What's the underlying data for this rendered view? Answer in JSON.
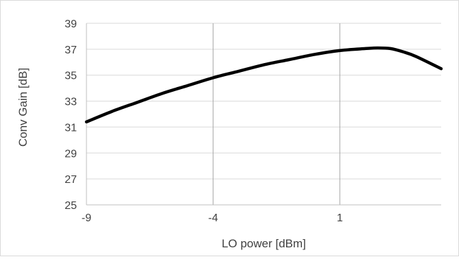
{
  "chart_data": {
    "type": "line",
    "title": "",
    "xlabel": "LO power [dBm]",
    "ylabel": "Conv Gain [dB]",
    "xlim": [
      -9,
      5
    ],
    "ylim": [
      25,
      39
    ],
    "x_ticks": [
      -9,
      -4,
      1
    ],
    "y_ticks": [
      25,
      27,
      29,
      31,
      33,
      35,
      37,
      39
    ],
    "grid": {
      "horizontal": true,
      "vertical": true
    },
    "legend": "none",
    "series": [
      {
        "color": "#000000",
        "x": [
          -9,
          -8,
          -7,
          -6,
          -5,
          -4,
          -3,
          -2,
          -1,
          0,
          1,
          2,
          2.5,
          3,
          3.5,
          4,
          5
        ],
        "y": [
          31.4,
          32.2,
          32.9,
          33.6,
          34.2,
          34.8,
          35.3,
          35.8,
          36.2,
          36.6,
          36.9,
          37.05,
          37.1,
          37.05,
          36.8,
          36.45,
          35.5
        ]
      }
    ]
  }
}
